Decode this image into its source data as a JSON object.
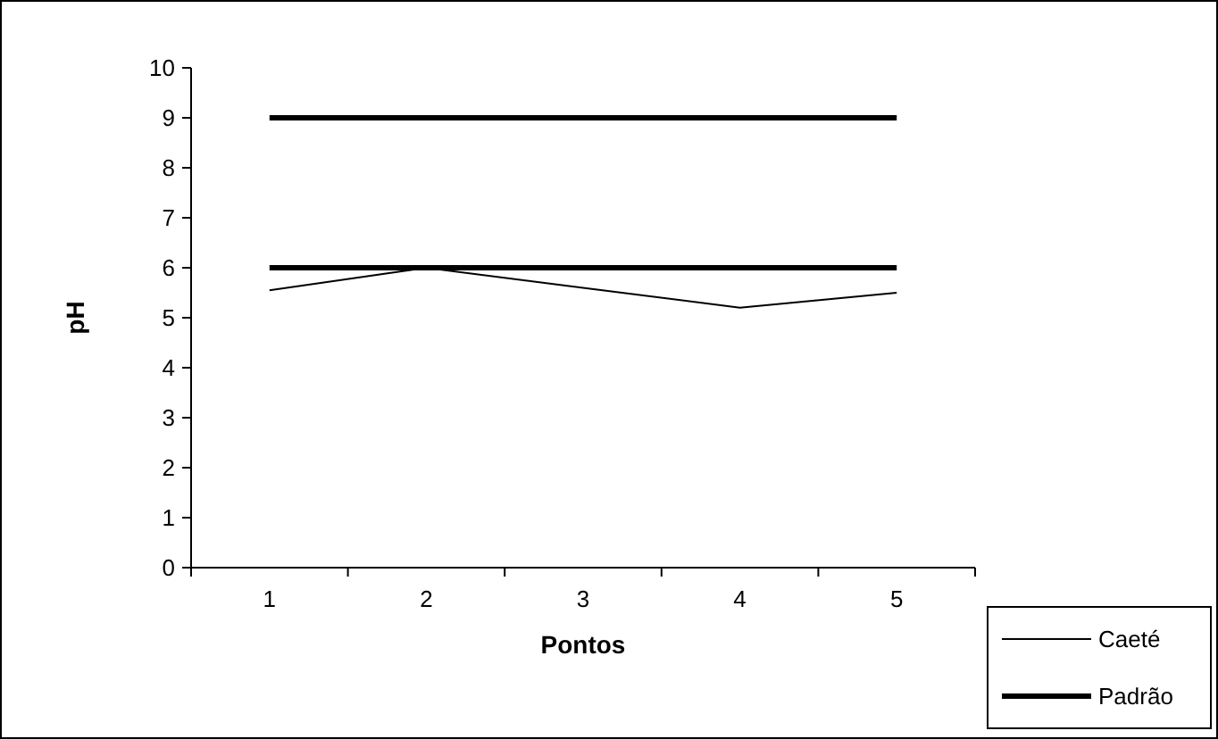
{
  "chart_data": {
    "type": "line",
    "xlabel": "Pontos",
    "ylabel": "pH",
    "categories": [
      "1",
      "2",
      "3",
      "4",
      "5"
    ],
    "series": [
      {
        "name": "Caeté",
        "color": "#000000",
        "values": [
          5.55,
          6.0,
          5.6,
          5.2,
          5.5
        ]
      },
      {
        "name": "Padrão",
        "color": "#000000",
        "values": [
          9,
          9,
          9,
          9,
          9
        ]
      },
      {
        "color": "#000000",
        "values": [
          6,
          6,
          6,
          6,
          6
        ]
      }
    ],
    "ylim": [
      0,
      10
    ],
    "yticks": [
      0,
      1,
      2,
      3,
      4,
      5,
      6,
      7,
      8,
      9,
      10
    ],
    "grid": false,
    "legend": "bottom right",
    "marker": "none",
    "line_style": "solid"
  }
}
